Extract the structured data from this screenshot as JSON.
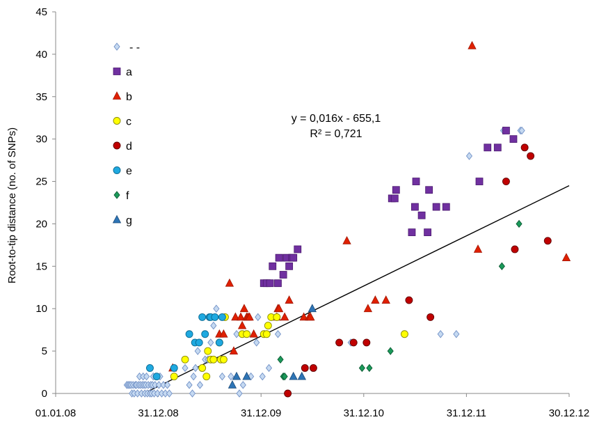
{
  "chart_data": {
    "type": "scatter",
    "title": "",
    "xlabel": "",
    "ylabel": "Root-to-tip distance (no. of SNPs)",
    "xlim": [
      "01.01.08",
      "30.12.12"
    ],
    "ylim": [
      0,
      45
    ],
    "x_tick_labels": [
      "01.01.08",
      "31.12.08",
      "31.12.09",
      "31.12.10",
      "31.12.11",
      "30.12.12"
    ],
    "y_tick_labels": [
      "0",
      "5",
      "10",
      "15",
      "20",
      "25",
      "30",
      "35",
      "40",
      "45"
    ],
    "grid": false,
    "legend_position": "top-left",
    "annotation": {
      "equation": "y = 0,016x - 655,1",
      "r_squared": "R² = 0,721"
    },
    "trendline": {
      "slope_per_day": 0.016,
      "intercept": -655.1,
      "from": {
        "x": "2008-11-09",
        "y": 0
      },
      "to": {
        "x": "2012-12-30",
        "y": 24.5
      }
    },
    "series": [
      {
        "name": "- -",
        "marker": "diamond",
        "color": "#c5d9f1",
        "stroke": "#6f8fc5",
        "points": [
          [
            "2008-09-10",
            1
          ],
          [
            "2008-09-15",
            1
          ],
          [
            "2008-09-20",
            1
          ],
          [
            "2008-09-25",
            1
          ],
          [
            "2008-09-28",
            0
          ],
          [
            "2008-10-02",
            1
          ],
          [
            "2008-10-06",
            0
          ],
          [
            "2008-10-10",
            1
          ],
          [
            "2008-10-14",
            1
          ],
          [
            "2008-10-18",
            0
          ],
          [
            "2008-10-22",
            1
          ],
          [
            "2008-10-25",
            2
          ],
          [
            "2008-10-28",
            1
          ],
          [
            "2008-11-01",
            0
          ],
          [
            "2008-11-04",
            1
          ],
          [
            "2008-11-07",
            2
          ],
          [
            "2008-11-10",
            1
          ],
          [
            "2008-11-13",
            0
          ],
          [
            "2008-11-16",
            1
          ],
          [
            "2008-11-19",
            2
          ],
          [
            "2008-11-22",
            0
          ],
          [
            "2008-11-25",
            1
          ],
          [
            "2008-11-28",
            3
          ],
          [
            "2008-12-01",
            0
          ],
          [
            "2008-12-04",
            1
          ],
          [
            "2008-12-07",
            0
          ],
          [
            "2008-12-10",
            1
          ],
          [
            "2008-12-13",
            2
          ],
          [
            "2008-12-16",
            0
          ],
          [
            "2008-12-19",
            1
          ],
          [
            "2008-12-22",
            2
          ],
          [
            "2008-12-28",
            0
          ],
          [
            "2009-01-02",
            1
          ],
          [
            "2009-01-06",
            2
          ],
          [
            "2009-01-12",
            0
          ],
          [
            "2009-01-18",
            1
          ],
          [
            "2009-01-25",
            0
          ],
          [
            "2009-02-01",
            1
          ],
          [
            "2009-02-08",
            0
          ],
          [
            "2009-04-05",
            3
          ],
          [
            "2009-04-20",
            1
          ],
          [
            "2009-05-01",
            0
          ],
          [
            "2009-05-05",
            2
          ],
          [
            "2009-05-12",
            3
          ],
          [
            "2009-05-20",
            5
          ],
          [
            "2009-05-28",
            1
          ],
          [
            "2009-06-05",
            3
          ],
          [
            "2009-06-15",
            4
          ],
          [
            "2009-06-25",
            4
          ],
          [
            "2009-07-05",
            6
          ],
          [
            "2009-07-15",
            8
          ],
          [
            "2009-07-25",
            10
          ],
          [
            "2009-08-15",
            2
          ],
          [
            "2009-09-15",
            2
          ],
          [
            "2009-10-05",
            7
          ],
          [
            "2009-10-15",
            0
          ],
          [
            "2009-10-28",
            1
          ],
          [
            "2009-11-25",
            2
          ],
          [
            "2009-12-15",
            6
          ],
          [
            "2009-12-20",
            9
          ],
          [
            "2010-01-05",
            2
          ],
          [
            "2010-01-28",
            3
          ],
          [
            "2010-03-01",
            7
          ],
          [
            "2010-11-15",
            6
          ],
          [
            "2011-09-30",
            7
          ],
          [
            "2011-11-25",
            7
          ],
          [
            "2012-01-10",
            28
          ],
          [
            "2012-05-10",
            31
          ],
          [
            "2012-05-15",
            31
          ],
          [
            "2012-07-10",
            31
          ],
          [
            "2012-07-15",
            31
          ]
        ]
      },
      {
        "name": "a",
        "marker": "square",
        "color": "#7030a0",
        "stroke": "#4b1a6e",
        "points": [
          [
            "2010-01-10",
            13
          ],
          [
            "2010-01-20",
            13
          ],
          [
            "2010-02-01",
            13
          ],
          [
            "2010-02-10",
            15
          ],
          [
            "2010-03-01",
            13
          ],
          [
            "2010-03-05",
            16
          ],
          [
            "2010-03-20",
            14
          ],
          [
            "2010-04-01",
            16
          ],
          [
            "2010-04-10",
            15
          ],
          [
            "2010-04-20",
            16
          ],
          [
            "2010-04-25",
            16
          ],
          [
            "2010-05-10",
            17
          ],
          [
            "2011-04-10",
            23
          ],
          [
            "2011-04-20",
            23
          ],
          [
            "2011-04-25",
            24
          ],
          [
            "2011-06-20",
            19
          ],
          [
            "2011-07-01",
            22
          ],
          [
            "2011-07-05",
            25
          ],
          [
            "2011-07-25",
            21
          ],
          [
            "2011-08-15",
            19
          ],
          [
            "2011-08-20",
            24
          ],
          [
            "2011-09-15",
            22
          ],
          [
            "2011-10-20",
            22
          ],
          [
            "2012-02-15",
            25
          ],
          [
            "2012-03-15",
            29
          ],
          [
            "2012-04-20",
            29
          ],
          [
            "2012-05-20",
            31
          ],
          [
            "2012-06-15",
            30
          ]
        ]
      },
      {
        "name": "b",
        "marker": "triangle",
        "color": "#e02000",
        "stroke": "#a01500",
        "points": [
          [
            "2009-02-20",
            3
          ],
          [
            "2009-08-05",
            7
          ],
          [
            "2009-08-20",
            7
          ],
          [
            "2009-09-10",
            13
          ],
          [
            "2009-09-25",
            5
          ],
          [
            "2009-10-01",
            9
          ],
          [
            "2009-10-20",
            9
          ],
          [
            "2009-10-25",
            8
          ],
          [
            "2009-11-01",
            10
          ],
          [
            "2009-11-10",
            9
          ],
          [
            "2009-11-15",
            9
          ],
          [
            "2009-11-20",
            9
          ],
          [
            "2009-12-05",
            7
          ],
          [
            "2010-02-25",
            9
          ],
          [
            "2010-03-01",
            10
          ],
          [
            "2010-03-05",
            10
          ],
          [
            "2010-03-25",
            9
          ],
          [
            "2010-04-10",
            11
          ],
          [
            "2010-06-01",
            9
          ],
          [
            "2010-06-20",
            9
          ],
          [
            "2010-06-25",
            9
          ],
          [
            "2010-11-01",
            18
          ],
          [
            "2011-01-15",
            10
          ],
          [
            "2011-02-10",
            11
          ],
          [
            "2011-03-20",
            11
          ],
          [
            "2012-01-20",
            41
          ],
          [
            "2012-02-10",
            17
          ],
          [
            "2012-12-20",
            16
          ]
        ]
      },
      {
        "name": "c",
        "marker": "circle",
        "color": "#ffff00",
        "stroke": "#8a8a00",
        "points": [
          [
            "2009-02-25",
            2
          ],
          [
            "2009-04-05",
            4
          ],
          [
            "2009-06-05",
            3
          ],
          [
            "2009-06-20",
            2
          ],
          [
            "2009-06-25",
            5
          ],
          [
            "2009-07-05",
            4
          ],
          [
            "2009-07-15",
            4
          ],
          [
            "2009-08-05",
            6
          ],
          [
            "2009-08-10",
            4
          ],
          [
            "2009-08-20",
            4
          ],
          [
            "2009-08-25",
            9
          ],
          [
            "2009-10-25",
            7
          ],
          [
            "2009-11-10",
            7
          ],
          [
            "2010-01-10",
            7
          ],
          [
            "2010-01-20",
            7
          ],
          [
            "2010-01-25",
            8
          ],
          [
            "2010-02-05",
            9
          ],
          [
            "2010-02-25",
            9
          ],
          [
            "2011-05-25",
            7
          ]
        ]
      },
      {
        "name": "d",
        "marker": "circle",
        "color": "#c00000",
        "stroke": "#600000",
        "points": [
          [
            "2010-04-05",
            0
          ],
          [
            "2010-06-05",
            3
          ],
          [
            "2010-07-05",
            3
          ],
          [
            "2010-10-05",
            6
          ],
          [
            "2010-11-25",
            6
          ],
          [
            "2011-01-10",
            6
          ],
          [
            "2011-06-10",
            11
          ],
          [
            "2011-08-25",
            9
          ],
          [
            "2012-05-20",
            25
          ],
          [
            "2012-06-20",
            17
          ],
          [
            "2012-07-25",
            29
          ],
          [
            "2012-08-15",
            28
          ],
          [
            "2012-10-15",
            18
          ]
        ]
      },
      {
        "name": "e",
        "marker": "circle",
        "color": "#1fa9e0",
        "stroke": "#0c6a92",
        "points": [
          [
            "2008-12-01",
            3
          ],
          [
            "2008-12-25",
            2
          ],
          [
            "2009-02-25",
            3
          ],
          [
            "2009-04-20",
            7
          ],
          [
            "2009-05-10",
            6
          ],
          [
            "2009-05-25",
            6
          ],
          [
            "2009-06-05",
            9
          ],
          [
            "2009-06-15",
            7
          ],
          [
            "2009-07-01",
            9
          ],
          [
            "2009-07-05",
            9
          ],
          [
            "2009-07-20",
            9
          ],
          [
            "2009-08-05",
            6
          ],
          [
            "2009-08-15",
            9
          ]
        ]
      },
      {
        "name": "f",
        "marker": "diamond",
        "color": "#1a9a5a",
        "stroke": "#0d5a33",
        "points": [
          [
            "2010-03-10",
            4
          ],
          [
            "2010-03-20",
            2
          ],
          [
            "2010-03-25",
            2
          ],
          [
            "2010-12-25",
            3
          ],
          [
            "2011-01-20",
            3
          ],
          [
            "2011-04-05",
            5
          ],
          [
            "2012-05-05",
            15
          ],
          [
            "2012-07-05",
            20
          ]
        ]
      },
      {
        "name": "g",
        "marker": "triangle",
        "color": "#2e75b6",
        "stroke": "#1a4a78",
        "points": [
          [
            "2009-09-20",
            1
          ],
          [
            "2009-10-05",
            2
          ],
          [
            "2009-11-10",
            2
          ],
          [
            "2010-04-25",
            2
          ],
          [
            "2010-05-25",
            2
          ],
          [
            "2010-07-01",
            10
          ]
        ]
      }
    ]
  }
}
